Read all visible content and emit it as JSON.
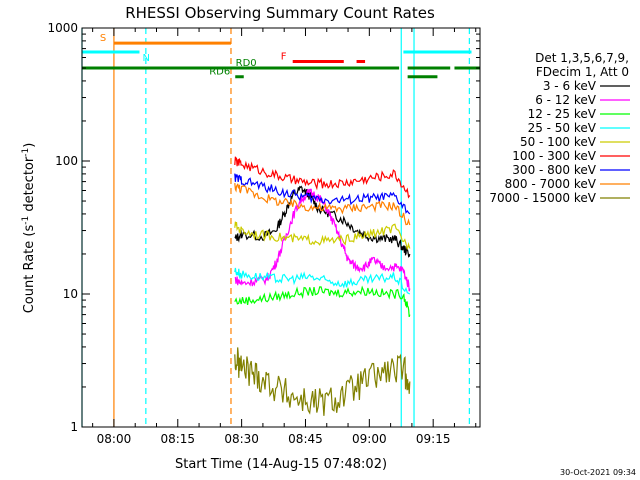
{
  "chart_data": {
    "type": "line",
    "title": "RHESSI Observing Summary Count Rates",
    "xlabel": "Start Time (14-Aug-15 07:48:02)",
    "ylabel_main": "Count Rate (s",
    "ylabel_sup1": "-1",
    "ylabel_mid": " detector",
    "ylabel_sup2": "-1",
    "ylabel_end": ")",
    "yscale": "log",
    "ylim": [
      1,
      1000
    ],
    "xlim_minutes": [
      472.5,
      566
    ],
    "x_tick_labels": [
      "08:00",
      "08:15",
      "08:30",
      "08:45",
      "09:00",
      "09:15"
    ],
    "x_tick_minutes": [
      480,
      495,
      510,
      525,
      540,
      555
    ],
    "y_tick_labels": [
      "1",
      "10",
      "100",
      "1000"
    ],
    "y_tick_values": [
      1,
      10,
      100,
      1000
    ],
    "legend_header": [
      "Det 1,3,5,6,7,9,",
      "FDecim 1, Att 0"
    ],
    "legend_position": "right",
    "series": [
      {
        "name": "3 - 6 keV",
        "color": "#000000",
        "points": [
          [
            508.4,
            26
          ],
          [
            510,
            28
          ],
          [
            515,
            27
          ],
          [
            518,
            30
          ],
          [
            520,
            40
          ],
          [
            522,
            55
          ],
          [
            524,
            62
          ],
          [
            526,
            55
          ],
          [
            528,
            44
          ],
          [
            531,
            40
          ],
          [
            534,
            36
          ],
          [
            537,
            30
          ],
          [
            540,
            27
          ],
          [
            543,
            26
          ],
          [
            546,
            26
          ],
          [
            548,
            22
          ],
          [
            549.5,
            20
          ]
        ]
      },
      {
        "name": "6 - 12 keV",
        "color": "#ff00ff",
        "points": [
          [
            508.4,
            13
          ],
          [
            510,
            12
          ],
          [
            513,
            12.5
          ],
          [
            516,
            13
          ],
          [
            518,
            17
          ],
          [
            520,
            25
          ],
          [
            522,
            38
          ],
          [
            524,
            52
          ],
          [
            526,
            58
          ],
          [
            528,
            54
          ],
          [
            530,
            44
          ],
          [
            532,
            32
          ],
          [
            534,
            22
          ],
          [
            535,
            18
          ],
          [
            537,
            16
          ],
          [
            539,
            16
          ],
          [
            541,
            18
          ],
          [
            543,
            16
          ],
          [
            546,
            16
          ],
          [
            548,
            15
          ],
          [
            549.5,
            11
          ]
        ]
      },
      {
        "name": "12 - 25 keV",
        "color": "#00ff00",
        "points": [
          [
            508.4,
            8.8
          ],
          [
            512,
            9
          ],
          [
            516,
            9.3
          ],
          [
            520,
            9.8
          ],
          [
            524,
            10.3
          ],
          [
            528,
            10.5
          ],
          [
            532,
            10.2
          ],
          [
            536,
            10.4
          ],
          [
            540,
            10.6
          ],
          [
            544,
            10
          ],
          [
            548,
            10
          ],
          [
            549.5,
            7
          ]
        ]
      },
      {
        "name": "25 - 50 keV",
        "color": "#00ffff",
        "points": [
          [
            508.4,
            15
          ],
          [
            510,
            14
          ],
          [
            514,
            13.5
          ],
          [
            518,
            13
          ],
          [
            522,
            13
          ],
          [
            526,
            13.5
          ],
          [
            530,
            12.5
          ],
          [
            534,
            12
          ],
          [
            538,
            12.5
          ],
          [
            542,
            13
          ],
          [
            546,
            13.5
          ],
          [
            549.5,
            10
          ]
        ]
      },
      {
        "name": "50 - 100 keV",
        "color": "#cccc00",
        "points": [
          [
            508.4,
            33
          ],
          [
            510,
            30
          ],
          [
            514,
            28
          ],
          [
            518,
            27
          ],
          [
            522,
            26
          ],
          [
            526,
            25.5
          ],
          [
            530,
            25
          ],
          [
            534,
            25.5
          ],
          [
            538,
            27
          ],
          [
            542,
            29
          ],
          [
            546,
            31
          ],
          [
            549.5,
            22
          ]
        ]
      },
      {
        "name": "100 - 300 keV",
        "color": "#ff0000",
        "points": [
          [
            508.4,
            100
          ],
          [
            510,
            95
          ],
          [
            514,
            86
          ],
          [
            518,
            78
          ],
          [
            522,
            72
          ],
          [
            526,
            68
          ],
          [
            530,
            67
          ],
          [
            534,
            68
          ],
          [
            538,
            72
          ],
          [
            542,
            76
          ],
          [
            546,
            80
          ],
          [
            549.5,
            55
          ]
        ]
      },
      {
        "name": "300 - 800 keV",
        "color": "#0000ff",
        "points": [
          [
            508.4,
            75
          ],
          [
            510,
            72
          ],
          [
            514,
            66
          ],
          [
            518,
            60
          ],
          [
            522,
            56
          ],
          [
            526,
            53
          ],
          [
            530,
            51
          ],
          [
            534,
            51
          ],
          [
            538,
            52
          ],
          [
            542,
            53
          ],
          [
            546,
            54
          ],
          [
            549.5,
            40
          ]
        ]
      },
      {
        "name": "800 - 7000 keV",
        "color": "#ff8000",
        "points": [
          [
            508.4,
            65
          ],
          [
            510,
            62
          ],
          [
            514,
            55
          ],
          [
            518,
            50
          ],
          [
            522,
            47
          ],
          [
            526,
            45
          ],
          [
            530,
            44
          ],
          [
            534,
            44
          ],
          [
            538,
            45
          ],
          [
            542,
            46
          ],
          [
            546,
            46
          ],
          [
            549.5,
            33
          ]
        ]
      },
      {
        "name": "7000 - 15000 keV",
        "color": "#808000",
        "points": [
          [
            508.4,
            3.2
          ],
          [
            510,
            2.8
          ],
          [
            513,
            2.5
          ],
          [
            516,
            2.2
          ],
          [
            520,
            1.8
          ],
          [
            524,
            1.6
          ],
          [
            528,
            1.5
          ],
          [
            532,
            1.6
          ],
          [
            536,
            1.9
          ],
          [
            540,
            2.3
          ],
          [
            544,
            2.6
          ],
          [
            548,
            2.7
          ],
          [
            549.5,
            2.2
          ]
        ]
      }
    ],
    "flag_bars": [
      {
        "label": "S",
        "color": "#ff8000",
        "y": 770,
        "segments": [
          [
            480,
            507.5
          ]
        ]
      },
      {
        "label": "N",
        "color": "#00ffff",
        "y": 660,
        "segments": [
          [
            472.5,
            486
          ],
          [
            548,
            564
          ]
        ]
      },
      {
        "label": "F",
        "color": "#ff0000",
        "y": 560,
        "segments": [
          [
            522,
            534
          ],
          [
            537,
            539
          ]
        ]
      },
      {
        "label": "RD0",
        "color": "#008000",
        "y": 500,
        "segments": [
          [
            472.5,
            547
          ],
          [
            549,
            559
          ],
          [
            560,
            566
          ]
        ]
      },
      {
        "label": "RD6",
        "color": "#008000",
        "y": 430,
        "segments": [
          [
            508.5,
            510.5
          ],
          [
            549,
            556
          ]
        ]
      }
    ],
    "vertical_markers": [
      {
        "minute": 480,
        "color": "#ff8000",
        "style": "solid"
      },
      {
        "minute": 487.5,
        "color": "#00ffff",
        "style": "dashed"
      },
      {
        "minute": 507.5,
        "color": "#ff8000",
        "style": "dashed"
      },
      {
        "minute": 547.5,
        "color": "#00ffff",
        "style": "solid"
      },
      {
        "minute": 550.5,
        "color": "#00ffff",
        "style": "solid"
      },
      {
        "minute": 563.5,
        "color": "#00ffff",
        "style": "dashed"
      },
      {
        "minute": 472.5,
        "color": "#00ffff",
        "style": "solid"
      }
    ],
    "footer_date": "30-Oct-2021 09:34"
  }
}
